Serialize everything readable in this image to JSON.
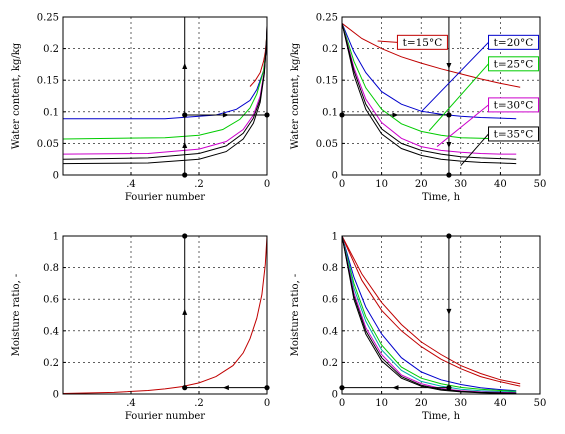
{
  "chart_data": [
    {
      "type": "line",
      "xlabel": "Fourier number",
      "ylabel": "Water content,  kg/kg",
      "xlim": [
        0,
        0.6
      ],
      "x_reversed": true,
      "ylim": [
        0,
        0.25
      ],
      "xticks": [
        0.4,
        0.2,
        0
      ],
      "yticks": [
        0,
        0.05,
        0.1,
        0.15,
        0.2,
        0.25
      ],
      "ytick_labels": [
        "0",
        "0.05",
        "0.1",
        "0.15",
        "0.2",
        "0.25"
      ],
      "grid": true,
      "series": [
        {
          "color": "#c00000",
          "x": [
            0.05,
            0.035,
            0.02,
            0.01,
            0.005,
            0
          ],
          "y": [
            0.14,
            0.149,
            0.162,
            0.18,
            0.195,
            0.225
          ]
        },
        {
          "color": "#0000cc",
          "x": [
            0.6,
            0.3,
            0.15,
            0.09,
            0.05,
            0.03,
            0.01,
            0.003,
            0
          ],
          "y": [
            0.089,
            0.089,
            0.095,
            0.104,
            0.118,
            0.135,
            0.165,
            0.195,
            0.228
          ]
        },
        {
          "color": "#00cc00",
          "x": [
            0.6,
            0.3,
            0.2,
            0.13,
            0.08,
            0.05,
            0.03,
            0.01,
            0.003,
            0
          ],
          "y": [
            0.057,
            0.059,
            0.063,
            0.072,
            0.088,
            0.106,
            0.128,
            0.165,
            0.198,
            0.232
          ]
        },
        {
          "color": "#cc00cc",
          "x": [
            0.6,
            0.35,
            0.2,
            0.12,
            0.07,
            0.04,
            0.02,
            0.008,
            0.002,
            0
          ],
          "y": [
            0.033,
            0.034,
            0.041,
            0.053,
            0.072,
            0.095,
            0.125,
            0.165,
            0.205,
            0.234
          ]
        },
        {
          "color": "#000000",
          "x": [
            0.6,
            0.35,
            0.2,
            0.12,
            0.07,
            0.04,
            0.02,
            0.008,
            0.002,
            0
          ],
          "y": [
            0.018,
            0.019,
            0.025,
            0.037,
            0.057,
            0.082,
            0.115,
            0.16,
            0.205,
            0.236
          ]
        },
        {
          "color": "#000000",
          "x": [
            0.6,
            0.35,
            0.2,
            0.12,
            0.07,
            0.04,
            0.02,
            0.008,
            0.002,
            0
          ],
          "y": [
            0.025,
            0.027,
            0.034,
            0.046,
            0.066,
            0.09,
            0.12,
            0.162,
            0.205,
            0.236
          ]
        }
      ],
      "guides": [
        {
          "x": [
            0.242,
            0.242
          ],
          "y": [
            0,
            0.095
          ]
        },
        {
          "x": [
            0.242,
            0.242
          ],
          "y": [
            0.095,
            0.25
          ]
        },
        {
          "x": [
            0.242,
            0
          ],
          "y": [
            0.095,
            0.095
          ]
        }
      ],
      "markers": [
        {
          "x": 0.242,
          "y": 0.095
        },
        {
          "x": 0.242,
          "y": 0
        },
        {
          "x": 0,
          "y": 0.095
        }
      ]
    },
    {
      "type": "line",
      "xlabel": "Time, h",
      "ylabel": "Water content,  kg/kg",
      "xlim": [
        0,
        50
      ],
      "ylim": [
        0,
        0.25
      ],
      "xticks": [
        0,
        10,
        20,
        30,
        40,
        50
      ],
      "yticks": [
        0,
        0.05,
        0.1,
        0.15,
        0.2,
        0.25
      ],
      "ytick_labels": [
        "0",
        "0.05",
        "0.1",
        "0.15",
        "0.2",
        "0.25"
      ],
      "grid": true,
      "series": [
        {
          "color": "#c00000",
          "x": [
            0,
            5,
            10,
            15,
            20,
            25,
            30,
            35,
            40,
            45
          ],
          "y": [
            0.24,
            0.216,
            0.2,
            0.187,
            0.177,
            0.168,
            0.16,
            0.152,
            0.145,
            0.139
          ]
        },
        {
          "color": "#0000cc",
          "x": [
            0,
            3,
            6,
            10,
            15,
            20,
            25,
            30,
            35,
            40,
            44
          ],
          "y": [
            0.24,
            0.195,
            0.162,
            0.132,
            0.112,
            0.101,
            0.096,
            0.093,
            0.091,
            0.09,
            0.089
          ]
        },
        {
          "color": "#00cc00",
          "x": [
            0,
            3,
            6,
            10,
            15,
            20,
            25,
            30,
            35,
            40,
            44
          ],
          "y": [
            0.24,
            0.18,
            0.138,
            0.104,
            0.081,
            0.069,
            0.063,
            0.059,
            0.058,
            0.057,
            0.057
          ]
        },
        {
          "color": "#cc00cc",
          "x": [
            0,
            3,
            6,
            10,
            15,
            20,
            25,
            30,
            35,
            40,
            44
          ],
          "y": [
            0.24,
            0.17,
            0.12,
            0.083,
            0.058,
            0.045,
            0.039,
            0.036,
            0.034,
            0.033,
            0.033
          ]
        },
        {
          "color": "#000000",
          "x": [
            0,
            3,
            6,
            10,
            15,
            20,
            25,
            30,
            35,
            40,
            44
          ],
          "y": [
            0.24,
            0.158,
            0.104,
            0.065,
            0.042,
            0.031,
            0.025,
            0.022,
            0.02,
            0.019,
            0.018
          ]
        },
        {
          "color": "#000000",
          "x": [
            0,
            3,
            6,
            10,
            15,
            20,
            25,
            30,
            35,
            40,
            44
          ],
          "y": [
            0.24,
            0.165,
            0.112,
            0.073,
            0.05,
            0.039,
            0.033,
            0.029,
            0.027,
            0.026,
            0.025
          ]
        }
      ],
      "guides": [
        {
          "x": [
            0,
            27
          ],
          "y": [
            0.095,
            0.095
          ]
        },
        {
          "x": [
            27,
            27
          ],
          "y": [
            0.25,
            0.095
          ]
        },
        {
          "x": [
            27,
            27
          ],
          "y": [
            0.095,
            0
          ]
        }
      ],
      "markers": [
        {
          "x": 0,
          "y": 0.095
        },
        {
          "x": 27,
          "y": 0.095
        },
        {
          "x": 27,
          "y": 0
        }
      ],
      "legend": [
        {
          "label": "t=15°C",
          "color": "#c00000",
          "box": [
            14,
            0.221
          ],
          "to": [
            9,
            0.212
          ]
        },
        {
          "label": "t=20°C",
          "color": "#0000cc",
          "box": [
            37,
            0.221
          ],
          "to": [
            20,
            0.1
          ]
        },
        {
          "label": "t=25°C",
          "color": "#00cc00",
          "box": [
            37,
            0.187
          ],
          "to": [
            22,
            0.07
          ]
        },
        {
          "label": "t=30°C",
          "color": "#cc00cc",
          "box": [
            37,
            0.122
          ],
          "to": [
            24,
            0.045
          ]
        },
        {
          "label": "t=35°C",
          "color": "#000000",
          "box": [
            37,
            0.076
          ],
          "to": [
            30,
            0.015
          ]
        }
      ]
    },
    {
      "type": "line",
      "xlabel": "Fourier number",
      "ylabel": "Moisture ratio, -",
      "xlim": [
        0,
        0.6
      ],
      "x_reversed": true,
      "ylim": [
        0,
        1
      ],
      "xticks": [
        0.4,
        0.2,
        0
      ],
      "yticks": [
        0,
        0.2,
        0.4,
        0.6,
        0.8,
        1
      ],
      "ytick_labels": [
        "0",
        "0.2",
        "0.4",
        "0.6",
        "0.8",
        "1"
      ],
      "grid": true,
      "series": [
        {
          "color": "#c00000",
          "x": [
            0.6,
            0.45,
            0.35,
            0.3,
            0.25,
            0.2,
            0.15,
            0.1,
            0.07,
            0.05,
            0.03,
            0.015,
            0.005,
            0
          ],
          "y": [
            0.003,
            0.01,
            0.022,
            0.032,
            0.047,
            0.07,
            0.11,
            0.18,
            0.26,
            0.35,
            0.48,
            0.63,
            0.82,
            1.0
          ]
        }
      ],
      "guides": [
        {
          "x": [
            0.242,
            0.242
          ],
          "y": [
            0.04,
            1
          ]
        },
        {
          "x": [
            0,
            0.242
          ],
          "y": [
            0.04,
            0.04
          ]
        }
      ],
      "markers": [
        {
          "x": 0.242,
          "y": 1
        },
        {
          "x": 0.242,
          "y": 0.04
        },
        {
          "x": 0,
          "y": 0.04
        }
      ]
    },
    {
      "type": "line",
      "xlabel": "Time, h",
      "ylabel": "Moisture ratio, -",
      "xlim": [
        0,
        50
      ],
      "ylim": [
        0,
        1
      ],
      "xticks": [
        0,
        10,
        20,
        30,
        40,
        50
      ],
      "yticks": [
        0,
        0.2,
        0.4,
        0.6,
        0.8,
        1
      ],
      "ytick_labels": [
        "0",
        "0.2",
        "0.4",
        "0.6",
        "0.8",
        "1"
      ],
      "grid": true,
      "series": [
        {
          "color": "#c00000",
          "x": [
            0,
            5,
            10,
            15,
            20,
            25,
            30,
            35,
            40,
            45
          ],
          "y": [
            1.0,
            0.76,
            0.58,
            0.44,
            0.33,
            0.25,
            0.18,
            0.13,
            0.09,
            0.065
          ]
        },
        {
          "color": "#c00000",
          "x": [
            0,
            5,
            10,
            15,
            20,
            25,
            30,
            35,
            40,
            45
          ],
          "y": [
            1.0,
            0.72,
            0.53,
            0.4,
            0.3,
            0.22,
            0.16,
            0.11,
            0.077,
            0.05
          ]
        },
        {
          "color": "#0000cc",
          "x": [
            0,
            3,
            6,
            10,
            15,
            20,
            25,
            30,
            35,
            40,
            44
          ],
          "y": [
            1.0,
            0.74,
            0.55,
            0.38,
            0.23,
            0.14,
            0.09,
            0.06,
            0.04,
            0.028,
            0.02
          ]
        },
        {
          "color": "#00cc00",
          "x": [
            0,
            3,
            6,
            10,
            15,
            20,
            25,
            30,
            35,
            40,
            44
          ],
          "y": [
            1.0,
            0.7,
            0.49,
            0.31,
            0.17,
            0.1,
            0.065,
            0.042,
            0.03,
            0.022,
            0.018
          ]
        },
        {
          "color": "#00aaaa",
          "x": [
            0,
            3,
            6,
            10,
            15,
            20,
            25,
            30,
            35,
            40,
            44
          ],
          "y": [
            1.0,
            0.67,
            0.46,
            0.28,
            0.15,
            0.08,
            0.05,
            0.03,
            0.02,
            0.015,
            0.012
          ]
        },
        {
          "color": "#cc00cc",
          "x": [
            0,
            3,
            6,
            10,
            15,
            20,
            25,
            30,
            35,
            40,
            44
          ],
          "y": [
            1.0,
            0.64,
            0.42,
            0.25,
            0.12,
            0.065,
            0.035,
            0.02,
            0.013,
            0.01,
            0.008
          ]
        },
        {
          "color": "#000000",
          "x": [
            0,
            3,
            6,
            10,
            15,
            20,
            25,
            30,
            35,
            40,
            44
          ],
          "y": [
            1.0,
            0.6,
            0.38,
            0.21,
            0.1,
            0.05,
            0.025,
            0.013,
            0.008,
            0.005,
            0.004
          ]
        },
        {
          "color": "#000000",
          "x": [
            0,
            3,
            6,
            10,
            15,
            20,
            25,
            30,
            35,
            40,
            44
          ],
          "y": [
            1.0,
            0.62,
            0.4,
            0.23,
            0.11,
            0.056,
            0.03,
            0.017,
            0.01,
            0.007,
            0.005
          ]
        }
      ],
      "guides": [
        {
          "x": [
            27,
            27
          ],
          "y": [
            1,
            0.04
          ]
        },
        {
          "x": [
            27,
            0
          ],
          "y": [
            0.04,
            0.04
          ]
        }
      ],
      "markers": [
        {
          "x": 27,
          "y": 1
        },
        {
          "x": 27,
          "y": 0.04
        },
        {
          "x": 0,
          "y": 0.04
        }
      ]
    }
  ]
}
